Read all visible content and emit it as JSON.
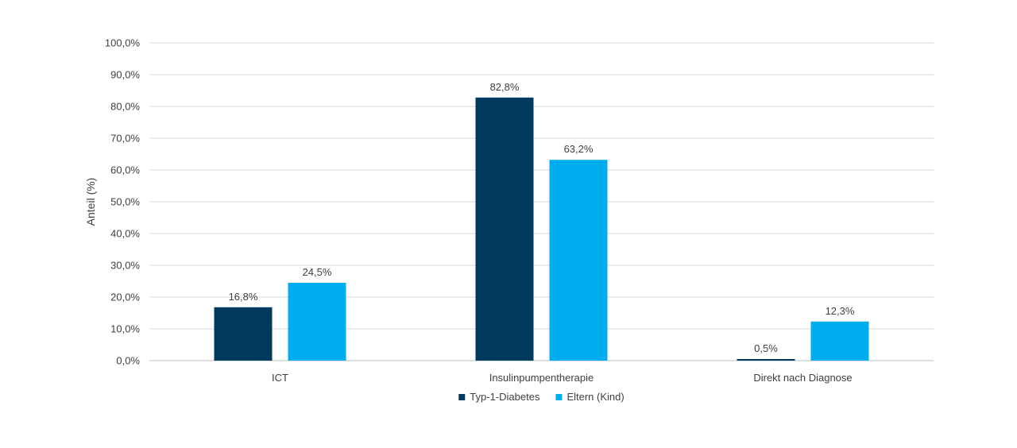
{
  "chart_data": {
    "type": "bar",
    "title": "",
    "xlabel": "",
    "ylabel": "Anteil (%)",
    "ylim": [
      0,
      100
    ],
    "y_tick_step": 10,
    "y_tick_labels": [
      "0,0%",
      "10,0%",
      "20,0%",
      "30,0%",
      "40,0%",
      "50,0%",
      "60,0%",
      "70,0%",
      "80,0%",
      "90,0%",
      "100,0%"
    ],
    "grid": true,
    "legend_position": "bottom",
    "categories": [
      "ICT",
      "Insulinpumpentherapie",
      "Direkt nach Diagnose"
    ],
    "series": [
      {
        "name": "Typ-1-Diabetes",
        "color": "#003a5f",
        "values": [
          16.8,
          82.8,
          0.5
        ],
        "labels": [
          "16,8%",
          "82,8%",
          "0,5%"
        ]
      },
      {
        "name": "Eltern (Kind)",
        "color": "#00adef",
        "values": [
          24.5,
          63.2,
          12.3
        ],
        "labels": [
          "24,5%",
          "63,2%",
          "12,3%"
        ]
      }
    ]
  }
}
